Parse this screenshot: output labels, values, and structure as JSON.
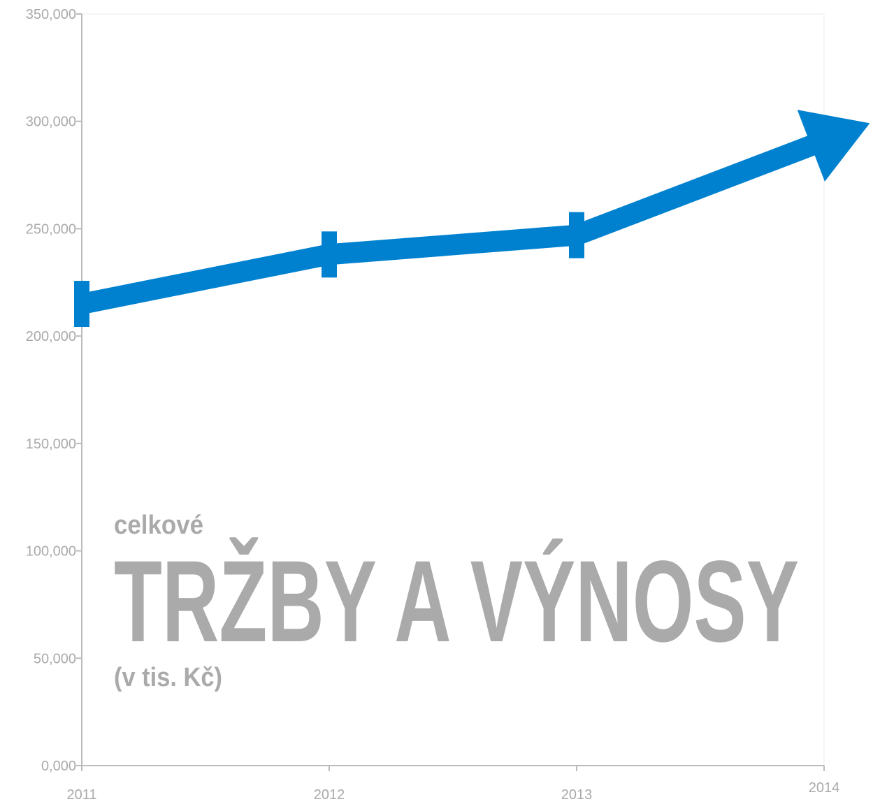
{
  "chart_data": {
    "type": "line",
    "title": "TRŽBY A VÝNOSY",
    "subtitle": "celkové",
    "annotation": "(v tis. Kč)",
    "categories": [
      "2011",
      "2012",
      "2013",
      "2014"
    ],
    "series": [
      {
        "name": "tržby a výnosy",
        "color": "#0081d0",
        "values": [
          215000,
          238000,
          247000,
          291000
        ]
      }
    ],
    "ylim": [
      0,
      350000
    ],
    "yticks": [
      {
        "value": 0,
        "label": "0,000"
      },
      {
        "value": 50000,
        "label": "50,000"
      },
      {
        "value": 100000,
        "label": "100,000"
      },
      {
        "value": 150000,
        "label": "150,000"
      },
      {
        "value": 200000,
        "label": "200,000"
      },
      {
        "value": 250000,
        "label": "250,000"
      },
      {
        "value": 300000,
        "label": "300,000"
      },
      {
        "value": 350000,
        "label": "350,000"
      }
    ],
    "text_color": "#96c1e2"
  }
}
